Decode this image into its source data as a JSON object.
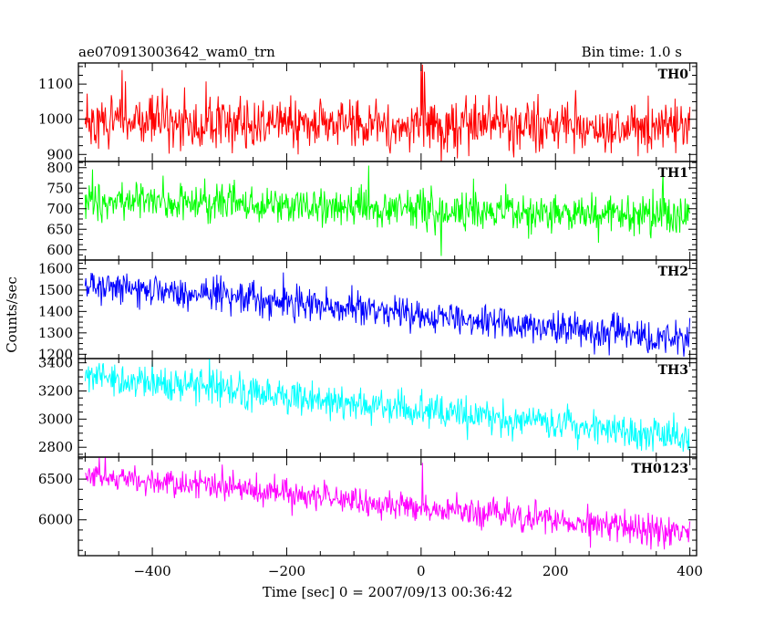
{
  "header": {
    "title": "ae070913003642_wam0_trn",
    "bin_time": "Bin time: 1.0 s"
  },
  "chart_data": {
    "type": "line",
    "xlabel": "Time [sec] 0 = 2007/09/13 00:36:42",
    "ylabel": "Counts/sec",
    "xlim": [
      -510,
      410
    ],
    "x_ticks": [
      -400,
      -200,
      0,
      200,
      400
    ],
    "x_tick_labels": [
      "−400",
      "−200",
      "0",
      "200",
      "400"
    ],
    "x_start": -500,
    "x_end": 400,
    "bin_time_s": 1.0,
    "grid": false,
    "series": [
      {
        "name": "TH0",
        "color": "#ff0000",
        "ylim": [
          880,
          1160
        ],
        "y_ticks": [
          900,
          1000,
          1100
        ],
        "y_tick_labels": [
          "900",
          "1000",
          "1100"
        ],
        "trend_start": 1000,
        "trend_end": 975,
        "noise_amplitude": 45,
        "spikes": [
          {
            "x": -445,
            "y": 1140
          },
          {
            "x": 0,
            "y": 1160
          },
          {
            "x": 2,
            "y": 1155
          },
          {
            "x": 5,
            "y": 1135
          },
          {
            "x": 30,
            "y": 870
          }
        ]
      },
      {
        "name": "TH1",
        "color": "#00ff00",
        "ylim": [
          575,
          815
        ],
        "y_ticks": [
          600,
          650,
          700,
          750,
          800
        ],
        "y_tick_labels": [
          "600",
          "650",
          "700",
          "750",
          "800"
        ],
        "trend_start": 722,
        "trend_end": 680,
        "noise_amplitude": 30,
        "spikes": [
          {
            "x": -78,
            "y": 805
          },
          {
            "x": 30,
            "y": 585
          },
          {
            "x": 360,
            "y": 790
          }
        ]
      },
      {
        "name": "TH2",
        "color": "#0000ff",
        "ylim": [
          1180,
          1640
        ],
        "y_ticks": [
          1200,
          1300,
          1400,
          1500,
          1600
        ],
        "y_tick_labels": [
          "1200",
          "1300",
          "1400",
          "1500",
          "1600"
        ],
        "trend_start": 1530,
        "trend_end": 1270,
        "noise_amplitude": 50,
        "spikes": []
      },
      {
        "name": "TH3",
        "color": "#00ffff",
        "ylim": [
          2730,
          3430
        ],
        "y_ticks": [
          2800,
          3000,
          3200,
          3400
        ],
        "y_tick_labels": [
          "2800",
          "3000",
          "3200",
          "3400"
        ],
        "trend_start": 3300,
        "trend_end": 2870,
        "noise_amplitude": 75,
        "spikes": []
      },
      {
        "name": "TH0123",
        "color": "#ff00ff",
        "ylim": [
          5560,
          6770
        ],
        "y_ticks": [
          6000,
          6500
        ],
        "y_tick_labels": [
          "6000",
          "6500"
        ],
        "trend_start": 6560,
        "trend_end": 5830,
        "noise_amplitude": 110,
        "spikes": [
          {
            "x": 2,
            "y": 6700
          }
        ]
      }
    ]
  }
}
